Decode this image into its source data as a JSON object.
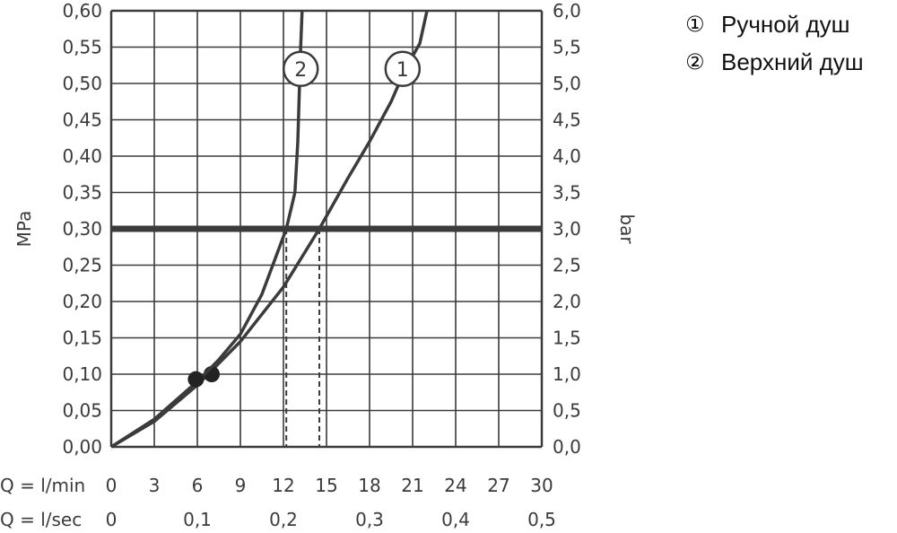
{
  "chart_data": {
    "type": "line",
    "x_label_lmin": "Q = l/min",
    "x_label_lsec": "Q = l/sec",
    "x_ticks_lmin": [
      "0",
      "3",
      "6",
      "9",
      "12",
      "15",
      "18",
      "21",
      "24",
      "27",
      "30"
    ],
    "x_ticks_lsec": [
      {
        "value": 0,
        "label": "0"
      },
      {
        "value": 0.1,
        "label": "0,1"
      },
      {
        "value": 0.2,
        "label": "0,2"
      },
      {
        "value": 0.3,
        "label": "0,3"
      },
      {
        "value": 0.4,
        "label": "0,4"
      },
      {
        "value": 0.5,
        "label": "0,5"
      }
    ],
    "y_left_label": "MPa",
    "y_right_label": "bar",
    "y_left_ticks": [
      "0,00",
      "0,05",
      "0,10",
      "0,15",
      "0,20",
      "0,25",
      "0,30",
      "0,35",
      "0,40",
      "0,45",
      "0,50",
      "0,55",
      "0,60"
    ],
    "y_right_ticks": [
      "0,0",
      "0,5",
      "1,0",
      "1,5",
      "2,0",
      "2,5",
      "3,0",
      "3,5",
      "4,0",
      "4,5",
      "5,0",
      "5,5",
      "6,0"
    ],
    "xlim": [
      0,
      30
    ],
    "ylim": [
      0,
      0.6
    ],
    "grid": true,
    "reference_line": {
      "y": 0.3
    },
    "series": [
      {
        "marker_label": "1",
        "name": "Ручной душ",
        "points": [
          [
            0,
            0
          ],
          [
            3,
            0.035
          ],
          [
            6,
            0.085
          ],
          [
            9,
            0.145
          ],
          [
            12,
            0.22
          ],
          [
            14.5,
            0.3
          ],
          [
            16.5,
            0.37
          ],
          [
            18,
            0.42
          ],
          [
            19.5,
            0.475
          ],
          [
            20.5,
            0.52
          ],
          [
            21.5,
            0.555
          ],
          [
            22,
            0.6
          ]
        ],
        "marker_dot": [
          7.0,
          0.1
        ],
        "operating_point_x": 14.5,
        "label_pos": [
          20.3,
          0.52
        ]
      },
      {
        "marker_label": "2",
        "name": "Верхний душ",
        "points": [
          [
            0,
            0
          ],
          [
            3,
            0.038
          ],
          [
            6,
            0.09
          ],
          [
            7.5,
            0.12
          ],
          [
            9,
            0.155
          ],
          [
            10.5,
            0.21
          ],
          [
            12.2,
            0.3
          ],
          [
            12.8,
            0.35
          ],
          [
            13.0,
            0.42
          ],
          [
            13.2,
            0.55
          ],
          [
            13.3,
            0.6
          ]
        ],
        "marker_dot": [
          5.9,
          0.093
        ],
        "operating_point_x": 12.2,
        "label_pos": [
          13.2,
          0.52
        ]
      }
    ]
  },
  "legend": [
    {
      "marker": "①",
      "text": "Ручной душ"
    },
    {
      "marker": "②",
      "text": "Верхний душ"
    }
  ]
}
